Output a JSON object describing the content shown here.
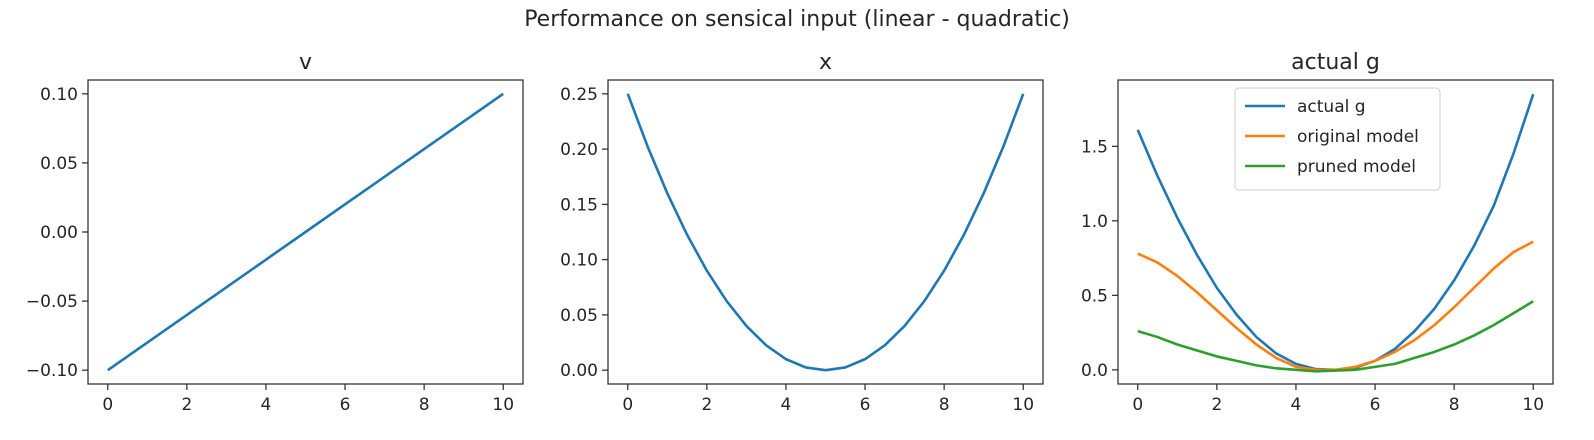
{
  "figure": {
    "suptitle": "Performance on sensical input (linear - quadratic)"
  },
  "chart_data": [
    {
      "type": "line",
      "title": "v",
      "xlabel": "",
      "ylabel": "",
      "xlim": [
        -0.5,
        10.5
      ],
      "ylim": [
        -0.11,
        0.11
      ],
      "xticks": [
        0,
        2,
        4,
        6,
        8,
        10
      ],
      "xtick_labels": [
        "0",
        "2",
        "4",
        "6",
        "8",
        "10"
      ],
      "yticks": [
        -0.1,
        -0.05,
        0.0,
        0.05,
        0.1
      ],
      "ytick_labels": [
        "−0.10",
        "−0.05",
        "0.00",
        "0.05",
        "0.10"
      ],
      "grid": false,
      "legend": null,
      "series": [
        {
          "color": "#1f77b4",
          "x": [
            0,
            1,
            2,
            3,
            4,
            5,
            6,
            7,
            8,
            9,
            10
          ],
          "y": [
            -0.1,
            -0.08,
            -0.06,
            -0.04,
            -0.02,
            0.0,
            0.02,
            0.04,
            0.06,
            0.08,
            0.1
          ]
        }
      ]
    },
    {
      "type": "line",
      "title": "x",
      "xlabel": "",
      "ylabel": "",
      "xlim": [
        -0.5,
        10.5
      ],
      "ylim": [
        -0.0125,
        0.2625
      ],
      "xticks": [
        0,
        2,
        4,
        6,
        8,
        10
      ],
      "xtick_labels": [
        "0",
        "2",
        "4",
        "6",
        "8",
        "10"
      ],
      "yticks": [
        0.0,
        0.05,
        0.1,
        0.15,
        0.2,
        0.25
      ],
      "ytick_labels": [
        "0.00",
        "0.05",
        "0.10",
        "0.15",
        "0.20",
        "0.25"
      ],
      "grid": false,
      "legend": null,
      "series": [
        {
          "color": "#1f77b4",
          "x": [
            0,
            0.5,
            1,
            1.5,
            2,
            2.5,
            3,
            3.5,
            4,
            4.5,
            5,
            5.5,
            6,
            6.5,
            7,
            7.5,
            8,
            8.5,
            9,
            9.5,
            10
          ],
          "y": [
            0.25,
            0.2025,
            0.16,
            0.1225,
            0.09,
            0.0625,
            0.04,
            0.0225,
            0.01,
            0.0025,
            0.0,
            0.0025,
            0.01,
            0.0225,
            0.04,
            0.0625,
            0.09,
            0.1225,
            0.16,
            0.2025,
            0.25
          ]
        }
      ]
    },
    {
      "type": "line",
      "title": "actual g",
      "xlabel": "",
      "ylabel": "",
      "xlim": [
        -0.5,
        10.5
      ],
      "ylim": [
        -0.095,
        1.945
      ],
      "xticks": [
        0,
        2,
        4,
        6,
        8,
        10
      ],
      "xtick_labels": [
        "0",
        "2",
        "4",
        "6",
        "8",
        "10"
      ],
      "yticks": [
        0.0,
        0.5,
        1.0,
        1.5
      ],
      "ytick_labels": [
        "0.0",
        "0.5",
        "1.0",
        "1.5"
      ],
      "grid": false,
      "legend": "upper center",
      "series": [
        {
          "name": "actual g",
          "color": "#1f77b4",
          "x": [
            0,
            0.5,
            1,
            1.5,
            2,
            2.5,
            3,
            3.5,
            4,
            4.5,
            5,
            5.5,
            6,
            6.5,
            7,
            7.5,
            8,
            8.5,
            9,
            9.5,
            10
          ],
          "y": [
            1.61,
            1.3,
            1.02,
            0.77,
            0.55,
            0.37,
            0.22,
            0.11,
            0.04,
            0.005,
            0.0,
            0.015,
            0.06,
            0.14,
            0.26,
            0.41,
            0.6,
            0.83,
            1.1,
            1.45,
            1.85
          ]
        },
        {
          "name": "original model",
          "color": "#ff7f0e",
          "x": [
            0,
            0.5,
            1,
            1.5,
            2,
            2.5,
            3,
            3.5,
            4,
            4.5,
            5,
            5.5,
            6,
            6.5,
            7,
            7.5,
            8,
            8.5,
            9,
            9.5,
            10
          ],
          "y": [
            0.78,
            0.72,
            0.63,
            0.52,
            0.4,
            0.28,
            0.17,
            0.08,
            0.02,
            0.0,
            0.0,
            0.02,
            0.06,
            0.12,
            0.2,
            0.3,
            0.42,
            0.55,
            0.68,
            0.79,
            0.86
          ]
        },
        {
          "name": "pruned model",
          "color": "#2ca02c",
          "x": [
            0,
            0.5,
            1,
            1.5,
            2,
            2.5,
            3,
            3.5,
            4,
            4.5,
            5,
            5.5,
            6,
            6.5,
            7,
            7.5,
            8,
            8.5,
            9,
            9.5,
            10
          ],
          "y": [
            0.26,
            0.22,
            0.17,
            0.13,
            0.09,
            0.06,
            0.03,
            0.01,
            0.0,
            -0.01,
            -0.005,
            0.0,
            0.02,
            0.04,
            0.08,
            0.12,
            0.17,
            0.23,
            0.3,
            0.38,
            0.46
          ]
        }
      ]
    }
  ]
}
